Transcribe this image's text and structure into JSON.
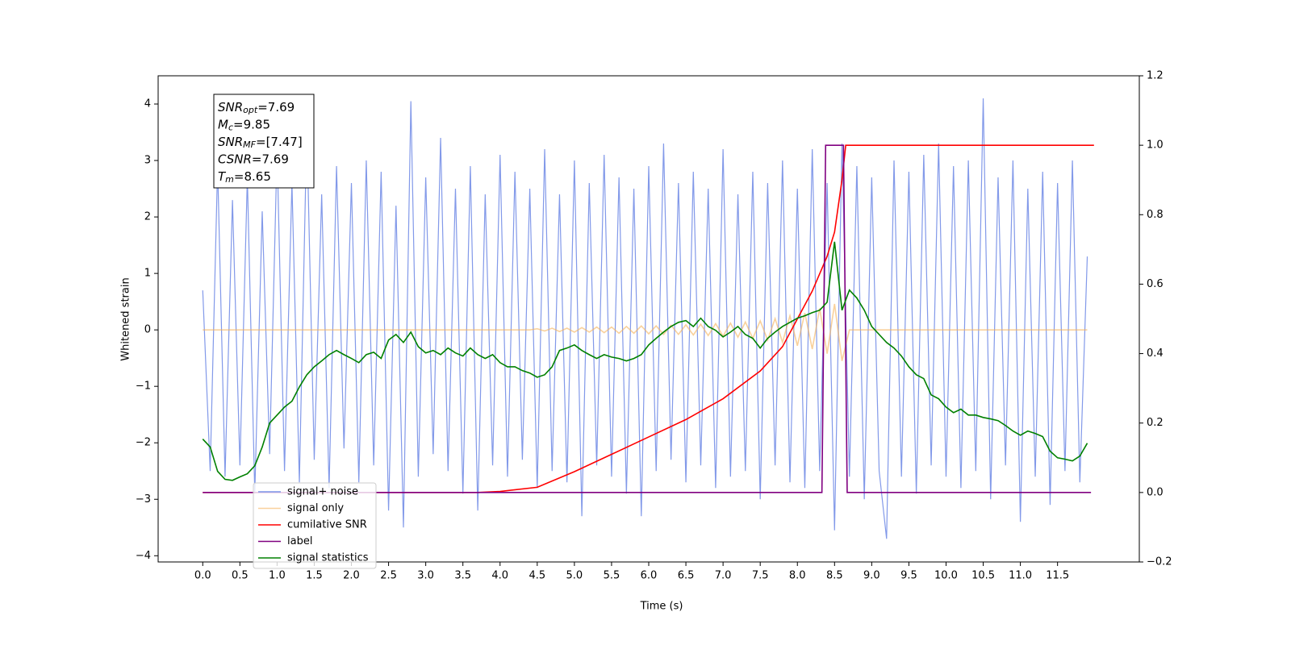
{
  "chart_data": {
    "type": "line",
    "xlabel": "Time (s)",
    "ylabel": "Whitened strain",
    "xlim": [
      -0.6,
      12.6
    ],
    "ylim": [
      -4.11,
      4.5
    ],
    "y2lim": [
      -0.2,
      1.2
    ],
    "xticks": [
      {
        "value": 0,
        "label": "0.0"
      },
      0.5,
      {
        "value": 1,
        "label": "1.0"
      },
      1.5,
      {
        "value": 2,
        "label": "2.0"
      },
      2.5,
      {
        "value": 3,
        "label": "3.0"
      },
      3.5,
      {
        "value": 4,
        "label": "4.0"
      },
      4.5,
      {
        "value": 5,
        "label": "5.0"
      },
      5.5,
      {
        "value": 6,
        "label": "6.0"
      },
      6.5,
      {
        "value": 7,
        "label": "7.0"
      },
      7.5,
      {
        "value": 8,
        "label": "8.0"
      },
      8.5,
      {
        "value": 9,
        "label": "9.0"
      },
      9.5,
      {
        "value": 10,
        "label": "10.0"
      },
      10.5,
      {
        "value": 11,
        "label": "11.0"
      },
      11.5
    ],
    "yticks": [
      {
        "value": -4,
        "label": "−4"
      },
      {
        "value": -3,
        "label": "−3"
      },
      {
        "value": -2,
        "label": "−2"
      },
      {
        "value": -1,
        "label": "−1"
      },
      0,
      1,
      2,
      3,
      4
    ],
    "y2ticks": [
      {
        "value": -0.2,
        "label": "−0.2"
      },
      {
        "value": 0,
        "label": "0.0"
      },
      0.2,
      0.4,
      0.6,
      0.8,
      {
        "value": 1,
        "label": "1.0"
      },
      1.2
    ],
    "legend": "lower left",
    "annotations": [
      {
        "text": "SNR",
        "sub": "opt",
        "rest": "=7.69"
      },
      {
        "text": "M",
        "sub": "c",
        "rest": "=9.85"
      },
      {
        "text": "SNR",
        "sub": "MF",
        "rest": "=[7.47]"
      },
      {
        "text": "CSNR",
        "rest": "=7.69"
      },
      {
        "text": "T",
        "sub": "m",
        "rest": "=8.65"
      }
    ],
    "x": [
      0,
      0.1,
      0.2,
      0.3,
      0.4,
      0.5,
      0.6,
      0.7,
      0.8,
      0.9,
      1,
      1.1,
      1.2,
      1.3,
      1.4,
      1.5,
      1.6,
      1.7,
      1.8,
      1.9,
      2,
      2.1,
      2.2,
      2.3,
      2.4,
      2.5,
      2.6,
      2.7,
      2.8,
      2.9,
      3,
      3.1,
      3.2,
      3.3,
      3.4,
      3.5,
      3.6,
      3.7,
      3.8,
      3.9,
      4,
      4.1,
      4.2,
      4.3,
      4.4,
      4.5,
      4.6,
      4.7,
      4.8,
      4.9,
      5,
      5.1,
      5.2,
      5.3,
      5.4,
      5.5,
      5.6,
      5.7,
      5.8,
      5.9,
      6,
      6.1,
      6.2,
      6.3,
      6.4,
      6.5,
      6.6,
      6.7,
      6.8,
      6.9,
      7,
      7.1,
      7.2,
      7.3,
      7.4,
      7.5,
      7.6,
      7.7,
      7.8,
      7.9,
      8,
      8.1,
      8.2,
      8.3,
      8.4,
      8.5,
      8.6,
      8.7,
      8.8,
      8.9,
      9,
      9.1,
      9.2,
      9.3,
      9.4,
      9.5,
      9.6,
      9.7,
      9.8,
      9.9,
      10,
      10.1,
      10.2,
      10.3,
      10.4,
      10.5,
      10.6,
      10.7,
      10.8,
      10.9,
      11,
      11.1,
      11.2,
      11.3,
      11.4,
      11.5,
      11.6,
      11.7,
      11.8,
      11.9
    ],
    "series": [
      {
        "name": "signal+ noise",
        "color": "#7b93e8",
        "values": [
          0.7,
          -2.5,
          2.9,
          -2.6,
          2.3,
          -2.4,
          2.7,
          -2.9,
          2.1,
          -2.2,
          3.2,
          -2.5,
          2.6,
          -2.7,
          3.6,
          -2.3,
          2.4,
          -2.8,
          2.9,
          -2.1,
          2.6,
          -2.7,
          3.0,
          -2.4,
          2.8,
          -3.2,
          2.2,
          -3.5,
          4.05,
          -2.6,
          2.7,
          -2.2,
          3.4,
          -2.5,
          2.5,
          -2.9,
          2.9,
          -3.2,
          2.4,
          -2.4,
          3.1,
          -2.6,
          2.8,
          -2.3,
          2.5,
          -2.8,
          3.2,
          -2.5,
          2.4,
          -2.7,
          3.0,
          -3.3,
          2.6,
          -2.4,
          3.1,
          -2.6,
          2.7,
          -2.9,
          2.5,
          -3.3,
          2.9,
          -2.5,
          3.3,
          -2.3,
          2.6,
          -2.7,
          2.8,
          -2.4,
          2.5,
          -2.8,
          3.2,
          -2.6,
          2.4,
          -2.5,
          2.8,
          -3.0,
          2.6,
          -2.4,
          3.0,
          -2.7,
          2.5,
          -2.8,
          3.2,
          -2.5,
          2.6,
          -3.55,
          3.3,
          -2.6,
          2.9,
          -3.0,
          2.7,
          -2.5,
          -3.7,
          3.0,
          -2.6,
          2.8,
          -2.9,
          3.1,
          -2.4,
          3.3,
          -2.6,
          2.9,
          -2.8,
          3.0,
          -2.5,
          4.1,
          -3.0,
          2.7,
          -2.4,
          3.0,
          -3.4,
          2.5,
          -2.6,
          2.8,
          -3.1,
          2.6,
          -2.5,
          3.0,
          -2.7,
          1.3
        ]
      },
      {
        "name": "signal only",
        "color": "#f5b25a",
        "values": [
          0,
          0,
          0,
          0,
          0,
          0,
          0,
          0,
          0,
          0,
          0,
          0,
          0,
          0,
          0,
          0,
          0,
          0,
          0,
          0,
          0,
          0,
          0,
          0,
          0,
          0,
          0,
          0,
          0,
          0,
          0,
          0,
          0,
          0,
          0,
          0,
          0,
          0,
          0,
          0,
          0,
          0,
          0,
          0,
          0,
          0.02,
          -0.02,
          0.03,
          -0.03,
          0.03,
          -0.04,
          0.04,
          -0.04,
          0.05,
          -0.05,
          0.05,
          -0.06,
          0.06,
          -0.06,
          0.07,
          -0.07,
          0.07,
          -0.08,
          0.08,
          -0.08,
          0.09,
          -0.09,
          0.1,
          -0.1,
          0.11,
          -0.11,
          0.12,
          -0.13,
          0.14,
          -0.15,
          0.16,
          -0.18,
          0.2,
          -0.22,
          0.25,
          -0.28,
          0.3,
          -0.34,
          0.38,
          -0.42,
          0.46,
          -0.55,
          0,
          0,
          0,
          0,
          0,
          0,
          0,
          0,
          0,
          0,
          0,
          0,
          0,
          0,
          0,
          0,
          0,
          0,
          0,
          0,
          0,
          0,
          0,
          0,
          0,
          0,
          0,
          0,
          0,
          0,
          0,
          0,
          0
        ]
      },
      {
        "name": "cumilative SNR",
        "color": "#ff0000",
        "axis": "y2",
        "x": [
          0,
          3.7,
          4.0,
          4.5,
          5.0,
          5.5,
          6.0,
          6.5,
          7.0,
          7.5,
          7.8,
          8.0,
          8.2,
          8.4,
          8.5,
          8.6,
          8.65,
          11.99
        ],
        "values": [
          0,
          0,
          0.003,
          0.015,
          0.06,
          0.11,
          0.16,
          0.21,
          0.27,
          0.35,
          0.42,
          0.5,
          0.58,
          0.68,
          0.75,
          0.9,
          1.0,
          1.0
        ]
      },
      {
        "name": "label",
        "color": "#800080",
        "axis": "y2",
        "x": [
          0,
          8.33,
          8.38,
          8.62,
          8.67,
          11.95
        ],
        "values": [
          0,
          0,
          1,
          1,
          0,
          0
        ]
      },
      {
        "name": "signal statistics",
        "color": "#008000",
        "axis": "y2",
        "values": [
          0.154,
          0.131,
          0.061,
          0.038,
          0.035,
          0.045,
          0.054,
          0.077,
          0.131,
          0.2,
          0.223,
          0.246,
          0.263,
          0.304,
          0.339,
          0.362,
          0.379,
          0.397,
          0.409,
          0.397,
          0.386,
          0.374,
          0.397,
          0.404,
          0.386,
          0.439,
          0.455,
          0.432,
          0.462,
          0.42,
          0.402,
          0.409,
          0.397,
          0.416,
          0.402,
          0.393,
          0.416,
          0.397,
          0.386,
          0.397,
          0.374,
          0.362,
          0.362,
          0.351,
          0.344,
          0.332,
          0.339,
          0.362,
          0.409,
          0.416,
          0.425,
          0.409,
          0.397,
          0.386,
          0.397,
          0.39,
          0.386,
          0.379,
          0.386,
          0.397,
          0.425,
          0.444,
          0.462,
          0.478,
          0.49,
          0.495,
          0.478,
          0.502,
          0.478,
          0.467,
          0.448,
          0.462,
          0.478,
          0.455,
          0.444,
          0.416,
          0.444,
          0.462,
          0.478,
          0.49,
          0.502,
          0.509,
          0.518,
          0.525,
          0.548,
          0.722,
          0.525,
          0.583,
          0.56,
          0.525,
          0.478,
          0.455,
          0.432,
          0.416,
          0.393,
          0.362,
          0.339,
          0.328,
          0.281,
          0.27,
          0.246,
          0.23,
          0.24,
          0.223,
          0.223,
          0.216,
          0.212,
          0.207,
          0.193,
          0.177,
          0.165,
          0.177,
          0.17,
          0.161,
          0.119,
          0.1,
          0.096,
          0.091,
          0.105,
          0.142
        ]
      }
    ]
  }
}
